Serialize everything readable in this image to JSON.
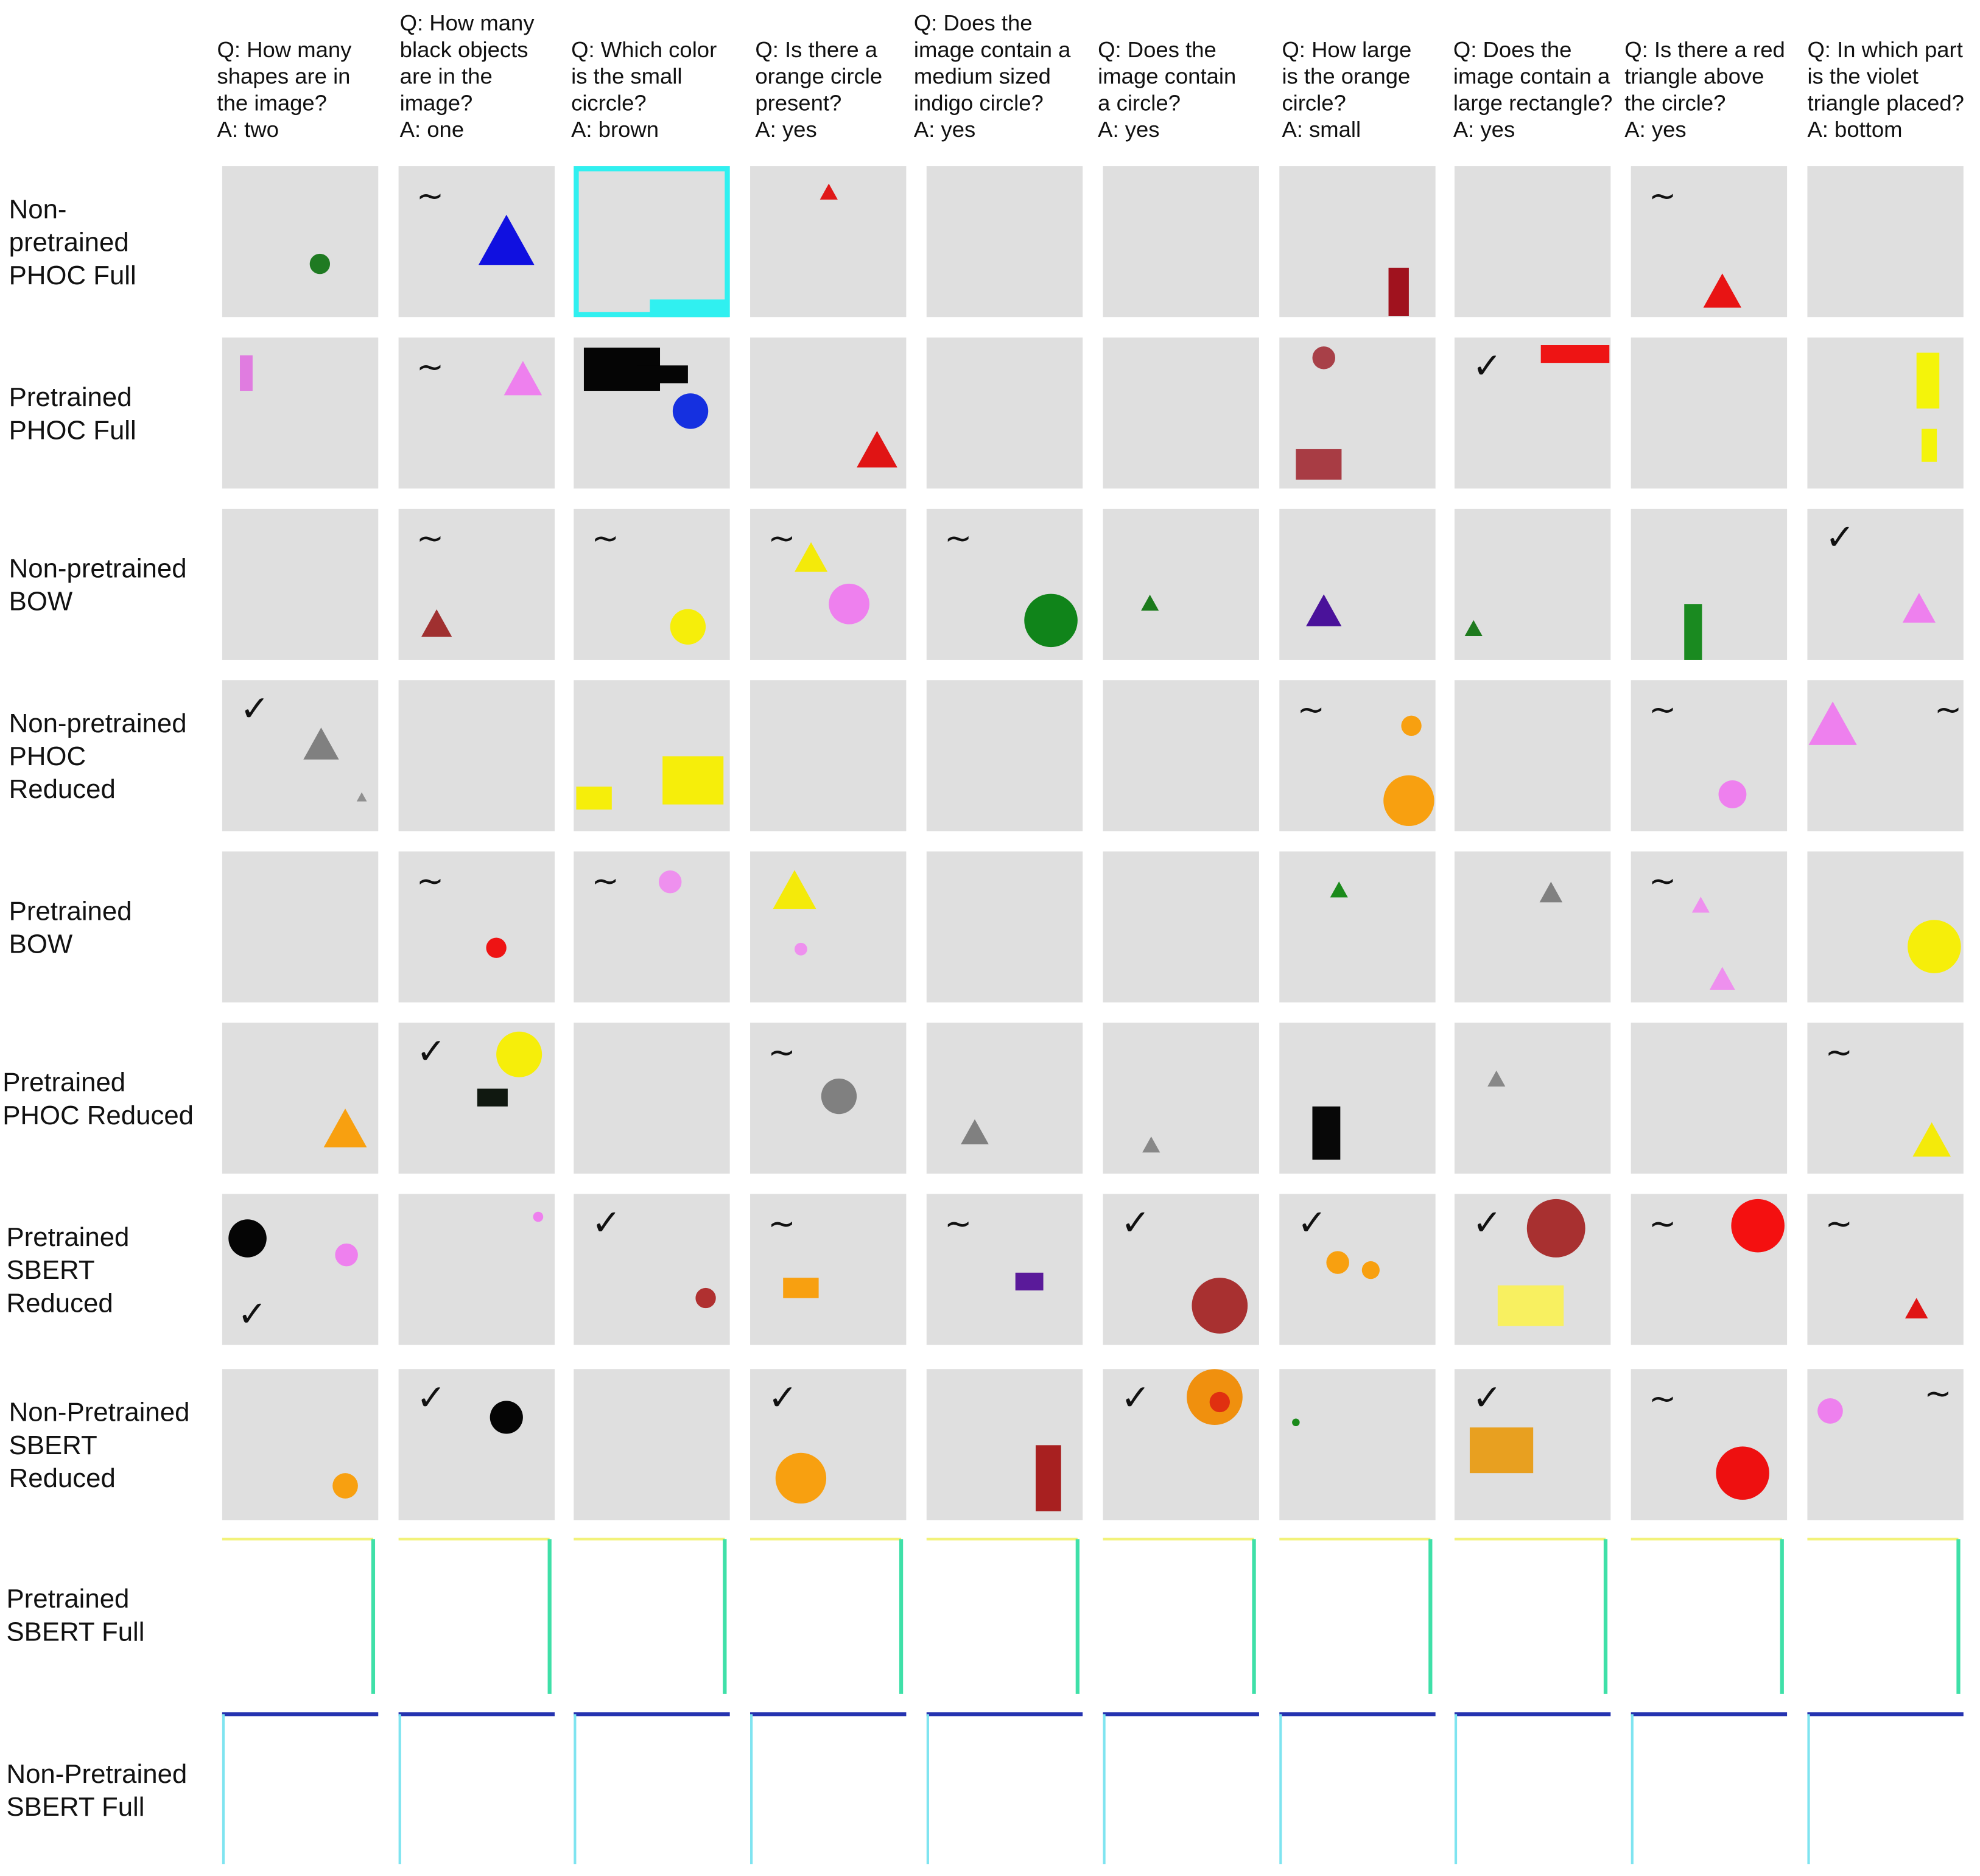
{
  "columns": [
    {
      "question": [
        "Q: How many",
        "shapes are in",
        "the image?"
      ],
      "answer": "A: two"
    },
    {
      "question": [
        "Q: How many",
        "black objects",
        "are in the",
        "image?"
      ],
      "answer": "A: one"
    },
    {
      "question": [
        "Q: Which color",
        "is the small",
        "cicrcle?"
      ],
      "answer": "A: brown"
    },
    {
      "question": [
        "Q: Is there a",
        "orange circle",
        "present?"
      ],
      "answer": "A: yes"
    },
    {
      "question": [
        "Q: Does the",
        "image contain a",
        "medium sized",
        "indigo circle?"
      ],
      "answer": "A: yes"
    },
    {
      "question": [
        "Q: Does the",
        "image contain",
        "a circle?"
      ],
      "answer": "A: yes"
    },
    {
      "question": [
        "Q: How large",
        "is the orange",
        "circle?"
      ],
      "answer": "A: small"
    },
    {
      "question": [
        "Q: Does the",
        "image contain a",
        "large rectangle?"
      ],
      "answer": "A: yes"
    },
    {
      "question": [
        "Q: Is there a red",
        "triangle above",
        "the circle?"
      ],
      "answer": "A: yes"
    },
    {
      "question": [
        "Q: In which part",
        "is the violet",
        "triangle placed?"
      ],
      "answer": "A: bottom"
    }
  ],
  "rows": [
    {
      "label": [
        "Non-",
        "pretrained",
        "PHOC Full"
      ],
      "marks": [
        null,
        "~",
        null,
        null,
        null,
        null,
        null,
        null,
        "~",
        null
      ]
    },
    {
      "label": [
        "Pretrained",
        "PHOC Full"
      ],
      "marks": [
        null,
        "~",
        null,
        null,
        null,
        null,
        null,
        "✓",
        null,
        null
      ]
    },
    {
      "label": [
        "Non-pretrained",
        "BOW"
      ],
      "marks": [
        null,
        "~",
        "~",
        "~",
        "~",
        null,
        null,
        null,
        null,
        "✓"
      ]
    },
    {
      "label": [
        "Non-pretrained",
        "PHOC",
        "Reduced"
      ],
      "marks": [
        "✓",
        null,
        null,
        null,
        null,
        null,
        "~",
        null,
        "~",
        "~"
      ]
    },
    {
      "label": [
        "Pretrained",
        "BOW"
      ],
      "marks": [
        null,
        "~",
        "~",
        null,
        null,
        null,
        null,
        null,
        "~",
        null
      ]
    },
    {
      "label": [
        "Pretrained",
        "PHOC Reduced"
      ],
      "marks": [
        null,
        "✓",
        null,
        "~",
        null,
        null,
        null,
        null,
        null,
        "~"
      ]
    },
    {
      "label": [
        "Pretrained",
        "SBERT",
        "Reduced"
      ],
      "marks": [
        "✓",
        null,
        "✓",
        "~",
        "~",
        "✓",
        "✓",
        "✓",
        "~",
        "~"
      ]
    },
    {
      "label": [
        "Non-Pretrained",
        "SBERT",
        "Reduced"
      ],
      "marks": [
        null,
        "✓",
        null,
        "✓",
        null,
        "✓",
        null,
        "✓",
        "~",
        "~"
      ]
    },
    {
      "label": [
        "Pretrained",
        "SBERT Full"
      ],
      "marks": [
        null,
        null,
        null,
        null,
        null,
        null,
        null,
        null,
        null,
        null
      ]
    },
    {
      "label": [
        "Non-Pretrained",
        "SBERT Full"
      ],
      "marks": [
        null,
        null,
        null,
        null,
        null,
        null,
        null,
        null,
        null,
        null
      ]
    }
  ]
}
